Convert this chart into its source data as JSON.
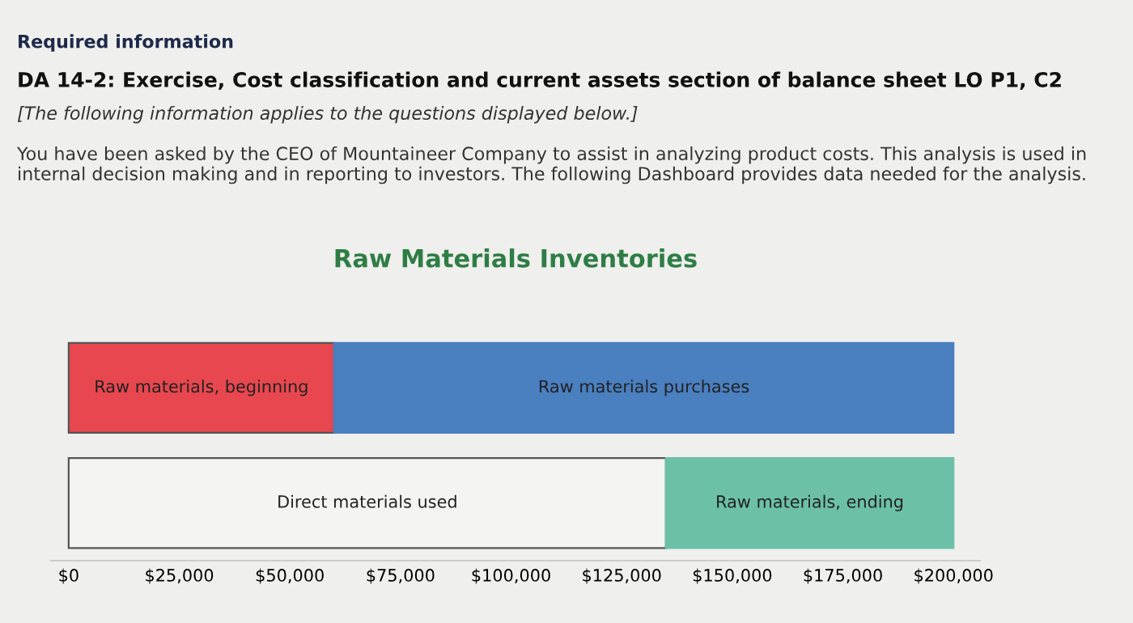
{
  "chart_data": {
    "type": "bar",
    "orientation": "horizontal",
    "stacked": true,
    "title": "Raw Materials Inventories",
    "annotations": [
      "Required information",
      "DA 14-2: Exercise, Cost classification and current assets section of balance sheet LO P1, C2",
      "[The following information applies to the questions displayed below.]",
      "You have been asked by the CEO of Mountaineer Company to assist in analyzing product costs. This analysis is used in internal decision making and in reporting to investors. The following Dashboard provides data needed for the analysis."
    ],
    "categories": [
      null,
      null
    ],
    "series": [
      {
        "name": "Raw materials, beginning",
        "color": "#e8474f",
        "values": [
          60000,
          null
        ]
      },
      {
        "name": "Raw materials purchases",
        "color": "#4a7fc0",
        "values": [
          140000,
          null
        ]
      },
      {
        "name": "Direct materials used",
        "color": "#f4f4f2",
        "values": [
          null,
          135000
        ]
      },
      {
        "name": "Raw materials, ending",
        "color": "#6cc0a8",
        "values": [
          null,
          65000
        ]
      }
    ],
    "xlim": [
      -4000,
      206000
    ],
    "xticks": [
      {
        "value": 0,
        "label": "$0"
      },
      {
        "value": 25000,
        "label": "$25,000"
      },
      {
        "value": 50000,
        "label": "$50,000"
      },
      {
        "value": 75000,
        "label": "$75,000"
      },
      {
        "value": 100000,
        "label": "$100,000"
      },
      {
        "value": 125000,
        "label": "$125,000"
      },
      {
        "value": 150000,
        "label": "$150,000"
      },
      {
        "value": 175000,
        "label": "$175,000"
      },
      {
        "value": 200000,
        "label": "$200,000"
      }
    ],
    "grid": false,
    "legend": false
  }
}
